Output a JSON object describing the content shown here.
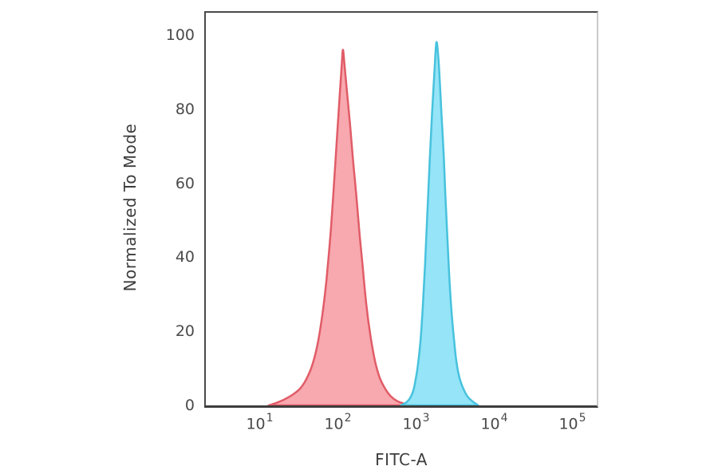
{
  "chart_data": {
    "type": "area",
    "subtype": "flow-cytometry-histogram-overlay",
    "title": "",
    "xlabel": "FITC-A",
    "ylabel": "Normalized To Mode",
    "x_scale": "log10",
    "xlim_log10": [
      0.3163,
      5.3163
    ],
    "ylim": [
      0,
      106
    ],
    "x_tick_base": "10",
    "x_tick_exponents": [
      1,
      2,
      3,
      4,
      5
    ],
    "y_ticks": [
      0,
      20,
      40,
      60,
      80,
      100
    ],
    "grid": false,
    "legend": null,
    "frame_color": "#4a4a4a",
    "series": [
      {
        "name": "red-filled-peak",
        "fill": "#f7a1a8",
        "fill_opacity": 0.92,
        "stroke": "#e05c67",
        "stroke_width": 2.5,
        "peak_log10x": 2.07,
        "peak_x_value": 118,
        "peak_y_value": 96,
        "points_log10x_y": [
          [
            1.12,
            0
          ],
          [
            1.22,
            0.7
          ],
          [
            1.32,
            1.6
          ],
          [
            1.42,
            2.8
          ],
          [
            1.52,
            4.5
          ],
          [
            1.6,
            7
          ],
          [
            1.68,
            11
          ],
          [
            1.75,
            17
          ],
          [
            1.81,
            25
          ],
          [
            1.86,
            34
          ],
          [
            1.91,
            46
          ],
          [
            1.95,
            58
          ],
          [
            1.99,
            71
          ],
          [
            2.03,
            84
          ],
          [
            2.055,
            92
          ],
          [
            2.07,
            96
          ],
          [
            2.09,
            92
          ],
          [
            2.12,
            85
          ],
          [
            2.16,
            76
          ],
          [
            2.2,
            66
          ],
          [
            2.24,
            57
          ],
          [
            2.28,
            47
          ],
          [
            2.32,
            38
          ],
          [
            2.37,
            27
          ],
          [
            2.42,
            19
          ],
          [
            2.48,
            12
          ],
          [
            2.54,
            7.5
          ],
          [
            2.61,
            4.5
          ],
          [
            2.68,
            2.5
          ],
          [
            2.76,
            1.2
          ],
          [
            2.85,
            0.5
          ],
          [
            2.95,
            0
          ]
        ]
      },
      {
        "name": "cyan-filled-peak",
        "fill": "#8ce2f6",
        "fill_opacity": 0.92,
        "stroke": "#47c2dd",
        "stroke_width": 2.5,
        "peak_log10x": 3.265,
        "peak_x_value": 1840,
        "peak_y_value": 98,
        "points_log10x_y": [
          [
            2.81,
            0
          ],
          [
            2.88,
            0.8
          ],
          [
            2.93,
            2
          ],
          [
            2.97,
            4
          ],
          [
            3.0,
            7
          ],
          [
            3.03,
            11
          ],
          [
            3.06,
            17
          ],
          [
            3.09,
            26
          ],
          [
            3.12,
            38
          ],
          [
            3.15,
            52
          ],
          [
            3.18,
            66
          ],
          [
            3.21,
            79
          ],
          [
            3.24,
            90
          ],
          [
            3.265,
            98
          ],
          [
            3.29,
            94
          ],
          [
            3.31,
            87
          ],
          [
            3.33,
            79
          ],
          [
            3.36,
            67
          ],
          [
            3.38,
            57
          ],
          [
            3.4,
            48
          ],
          [
            3.43,
            35
          ],
          [
            3.46,
            25
          ],
          [
            3.49,
            18
          ],
          [
            3.52,
            12
          ],
          [
            3.56,
            7.5
          ],
          [
            3.61,
            4.5
          ],
          [
            3.66,
            2.5
          ],
          [
            3.72,
            1.2
          ],
          [
            3.8,
            0
          ]
        ]
      }
    ]
  }
}
